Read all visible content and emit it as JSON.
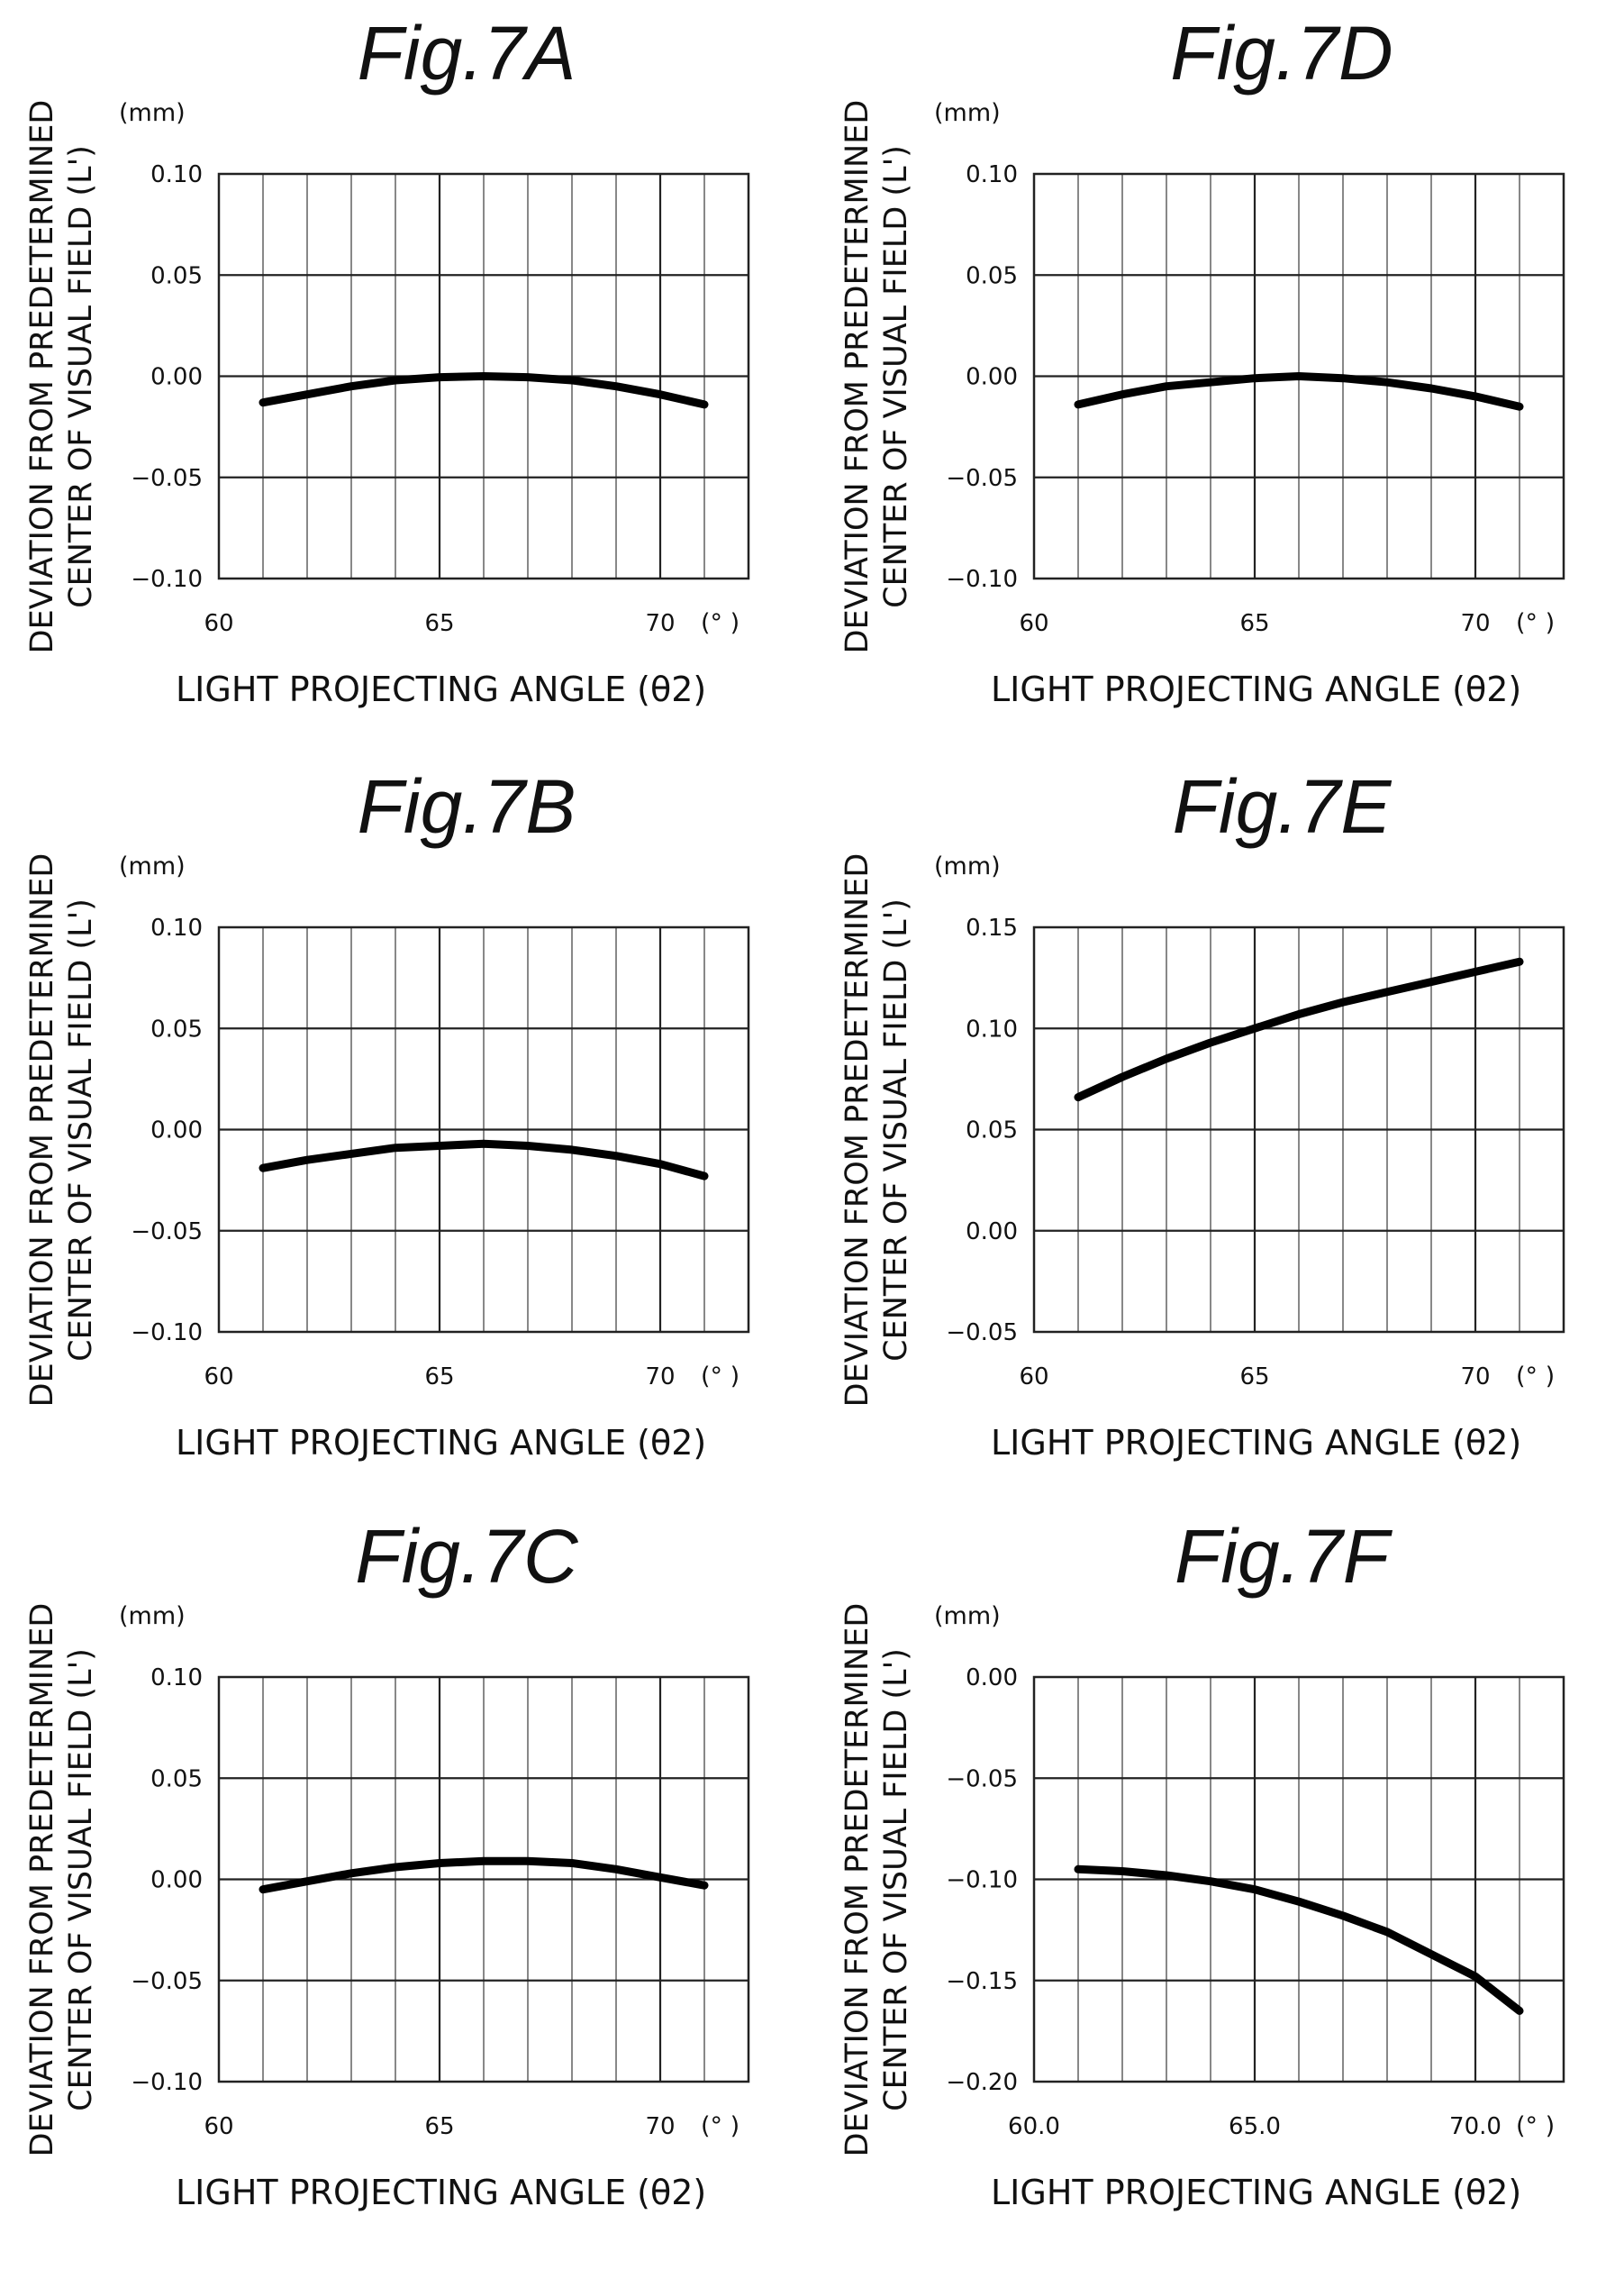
{
  "chart_data": [
    {
      "id": "7A",
      "type": "line",
      "title": "Fig.7A",
      "ylabel_line1": "DEVIATION FROM PREDETERMINED",
      "ylabel_line2": "CENTER OF VISUAL FIELD (L')",
      "yunit": "(mm)",
      "xlabel": "LIGHT PROJECTING ANGLE (θ2)",
      "xunit": "(°  )",
      "xlim": [
        60,
        72
      ],
      "ylim": [
        -0.1,
        0.1
      ],
      "xticks": [
        "60",
        "65",
        "70"
      ],
      "yticks": [
        "0.10",
        "0.05",
        "0.00",
        "−0.05",
        "−0.10"
      ],
      "grid": true,
      "x": [
        61,
        62,
        63,
        64,
        65,
        66,
        67,
        68,
        69,
        70,
        71
      ],
      "y": [
        -0.013,
        -0.009,
        -0.005,
        -0.002,
        -0.0005,
        0.0,
        -0.0005,
        -0.002,
        -0.005,
        -0.009,
        -0.014
      ]
    },
    {
      "id": "7D",
      "type": "line",
      "title": "Fig.7D",
      "ylabel_line1": "DEVIATION FROM PREDETERMINED",
      "ylabel_line2": "CENTER OF VISUAL FIELD (L')",
      "yunit": "(mm)",
      "xlabel": "LIGHT PROJECTING ANGLE (θ2)",
      "xunit": "(°  )",
      "xlim": [
        60,
        72
      ],
      "ylim": [
        -0.1,
        0.1
      ],
      "xticks": [
        "60",
        "65",
        "70"
      ],
      "yticks": [
        "0.10",
        "0.05",
        "0.00",
        "−0.05",
        "−0.10"
      ],
      "grid": true,
      "x": [
        61,
        62,
        63,
        64,
        65,
        66,
        67,
        68,
        69,
        70,
        71
      ],
      "y": [
        -0.014,
        -0.009,
        -0.005,
        -0.003,
        -0.001,
        0.0,
        -0.001,
        -0.003,
        -0.006,
        -0.01,
        -0.015
      ]
    },
    {
      "id": "7B",
      "type": "line",
      "title": "Fig.7B",
      "ylabel_line1": "DEVIATION FROM PREDETERMINED",
      "ylabel_line2": "CENTER OF VISUAL FIELD (L')",
      "yunit": "(mm)",
      "xlabel": "LIGHT PROJECTING ANGLE (θ2)",
      "xunit": "(°  )",
      "xlim": [
        60,
        72
      ],
      "ylim": [
        -0.1,
        0.1
      ],
      "xticks": [
        "60",
        "65",
        "70"
      ],
      "yticks": [
        "0.10",
        "0.05",
        "0.00",
        "−0.05",
        "−0.10"
      ],
      "grid": true,
      "x": [
        61,
        62,
        63,
        64,
        65,
        66,
        67,
        68,
        69,
        70,
        71
      ],
      "y": [
        -0.019,
        -0.015,
        -0.012,
        -0.009,
        -0.008,
        -0.007,
        -0.008,
        -0.01,
        -0.013,
        -0.017,
        -0.023
      ]
    },
    {
      "id": "7E",
      "type": "line",
      "title": "Fig.7E",
      "ylabel_line1": "DEVIATION FROM PREDETERMINED",
      "ylabel_line2": "CENTER OF VISUAL FIELD (L')",
      "yunit": "(mm)",
      "xlabel": "LIGHT PROJECTING ANGLE (θ2)",
      "xunit": "(°  )",
      "xlim": [
        60,
        72
      ],
      "ylim": [
        -0.05,
        0.15
      ],
      "xticks": [
        "60",
        "65",
        "70"
      ],
      "yticks": [
        "0.15",
        "0.10",
        "0.05",
        "0.00",
        "−0.05"
      ],
      "grid": true,
      "x": [
        61,
        62,
        63,
        64,
        65,
        66,
        67,
        68,
        69,
        70,
        71
      ],
      "y": [
        0.066,
        0.076,
        0.085,
        0.093,
        0.1,
        0.107,
        0.113,
        0.118,
        0.123,
        0.128,
        0.133
      ]
    },
    {
      "id": "7C",
      "type": "line",
      "title": "Fig.7C",
      "ylabel_line1": "DEVIATION FROM PREDETERMINED",
      "ylabel_line2": "CENTER OF VISUAL FIELD (L')",
      "yunit": "(mm)",
      "xlabel": "LIGHT PROJECTING ANGLE (θ2)",
      "xunit": "(°  )",
      "xlim": [
        60,
        72
      ],
      "ylim": [
        -0.1,
        0.1
      ],
      "xticks": [
        "60",
        "65",
        "70"
      ],
      "yticks": [
        "0.10",
        "0.05",
        "0.00",
        "−0.05",
        "−0.10"
      ],
      "grid": true,
      "x": [
        61,
        62,
        63,
        64,
        65,
        66,
        67,
        68,
        69,
        70,
        71
      ],
      "y": [
        -0.005,
        -0.001,
        0.003,
        0.006,
        0.008,
        0.009,
        0.009,
        0.008,
        0.005,
        0.001,
        -0.003
      ]
    },
    {
      "id": "7F",
      "type": "line",
      "title": "Fig.7F",
      "ylabel_line1": "DEVIATION FROM PREDETERMINED",
      "ylabel_line2": "CENTER OF VISUAL FIELD (L')",
      "yunit": "(mm)",
      "xlabel": "LIGHT PROJECTING ANGLE (θ2)",
      "xunit": "(°  )",
      "xlim": [
        60,
        72
      ],
      "ylim": [
        -0.2,
        0.0
      ],
      "xticks": [
        "60.0",
        "65.0",
        "70.0"
      ],
      "yticks": [
        "0.00",
        "−0.05",
        "−0.10",
        "−0.15",
        "−0.20"
      ],
      "grid": true,
      "x": [
        61,
        62,
        63,
        64,
        65,
        66,
        67,
        68,
        69,
        70,
        71
      ],
      "y": [
        -0.095,
        -0.096,
        -0.098,
        -0.101,
        -0.105,
        -0.111,
        -0.118,
        -0.126,
        -0.137,
        -0.148,
        -0.165
      ]
    }
  ]
}
